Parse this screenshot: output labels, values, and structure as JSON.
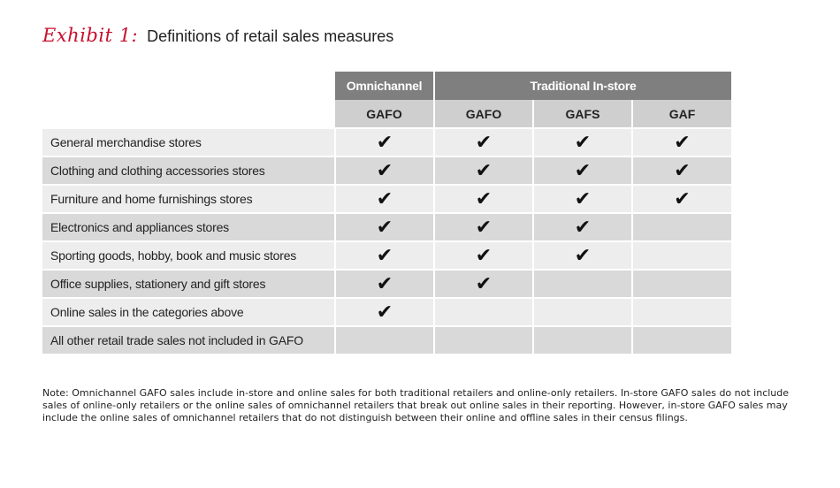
{
  "title": {
    "exhibit": "Exhibit 1:",
    "text": "Definitions of retail sales measures"
  },
  "table": {
    "groups": [
      "Omnichannel",
      "Traditional In-store"
    ],
    "columns": [
      "GAFO",
      "GAFO",
      "GAFS",
      "GAF"
    ],
    "check_glyph": "✔",
    "rows": [
      {
        "label": "General merchandise stores",
        "checks": [
          true,
          true,
          true,
          true
        ]
      },
      {
        "label": "Clothing and clothing accessories stores",
        "checks": [
          true,
          true,
          true,
          true
        ]
      },
      {
        "label": "Furniture and home furnishings stores",
        "checks": [
          true,
          true,
          true,
          true
        ]
      },
      {
        "label": "Electronics and appliances stores",
        "checks": [
          true,
          true,
          true,
          false
        ]
      },
      {
        "label": "Sporting goods, hobby, book and music stores",
        "checks": [
          true,
          true,
          true,
          false
        ]
      },
      {
        "label": "Office supplies, stationery and gift stores",
        "checks": [
          true,
          true,
          false,
          false
        ]
      },
      {
        "label": "Online sales in the categories above",
        "checks": [
          true,
          false,
          false,
          false
        ]
      },
      {
        "label": "All other retail trade sales not included in GAFO",
        "checks": [
          false,
          false,
          false,
          false
        ]
      }
    ]
  },
  "note": "Note: Omnichannel GAFO sales include in-store and online sales for both traditional retailers and online-only retailers. In-store GAFO sales do not include sales of online-only retailers or the online sales of omnichannel retailers that break out online sales in their reporting. However, in-store GAFO sales may include the online sales of omnichannel retailers that do not distinguish between their online and offline sales in their census filings."
}
